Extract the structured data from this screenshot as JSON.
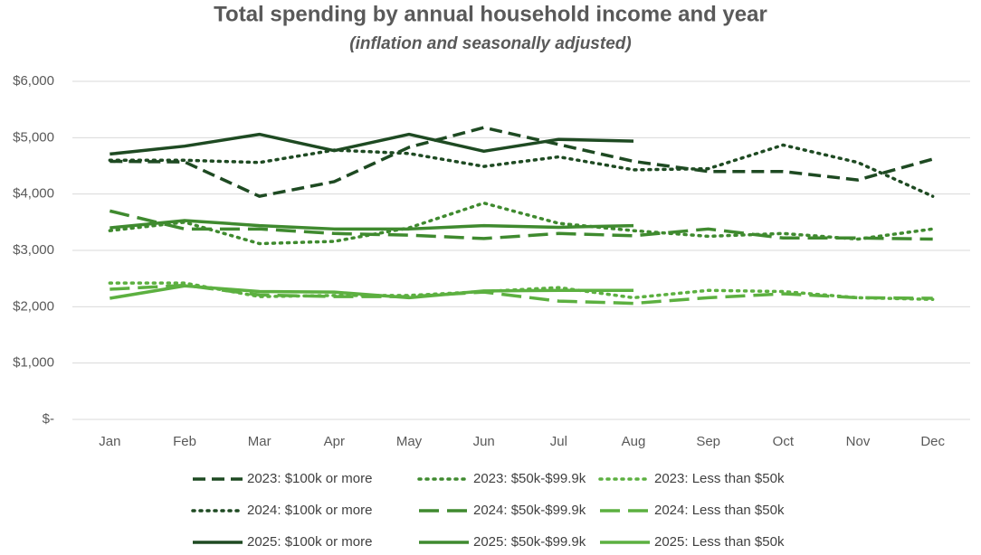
{
  "chart_data": {
    "type": "line",
    "title": "Total spending by annual household income and year",
    "subtitle": "(inflation and seasonally adjusted)",
    "categories": [
      "Jan",
      "Feb",
      "Mar",
      "Apr",
      "May",
      "Jun",
      "Jul",
      "Aug",
      "Sep",
      "Oct",
      "Nov",
      "Dec"
    ],
    "ylim": [
      0,
      6000
    ],
    "yticks": [
      {
        "value": 0,
        "label": "$-"
      },
      {
        "value": 1000,
        "label": "$1,000"
      },
      {
        "value": 2000,
        "label": "$2,000"
      },
      {
        "value": 3000,
        "label": "$3,000"
      },
      {
        "value": 4000,
        "label": "$4,000"
      },
      {
        "value": 5000,
        "label": "$5,000"
      },
      {
        "value": 6000,
        "label": "$6,000"
      }
    ],
    "grid": true,
    "legend": "bottom",
    "series": [
      {
        "name": "2023: $100k or more",
        "color": "#1e4a22",
        "style": "dashed",
        "values": [
          4580,
          4570,
          3960,
          4220,
          4830,
          5180,
          4880,
          4580,
          4400,
          4400,
          4250,
          4620
        ]
      },
      {
        "name": "2023: $50k-$99.9k",
        "color": "#3f8a2f",
        "style": "dotted",
        "values": [
          3350,
          3500,
          3120,
          3160,
          3400,
          3840,
          3480,
          3350,
          3250,
          3300,
          3200,
          3380
        ]
      },
      {
        "name": "2023: Less than $50k",
        "color": "#5cb040",
        "style": "dotted",
        "values": [
          2420,
          2420,
          2180,
          2200,
          2200,
          2270,
          2340,
          2160,
          2290,
          2270,
          2160,
          2130
        ]
      },
      {
        "name": "2024: $100k or more",
        "color": "#1e4a22",
        "style": "dotted",
        "values": [
          4600,
          4600,
          4560,
          4780,
          4720,
          4490,
          4660,
          4430,
          4450,
          4870,
          4560,
          3960
        ]
      },
      {
        "name": "2024: $50k-$99.9k",
        "color": "#3f8a2f",
        "style": "longdash",
        "values": [
          3700,
          3380,
          3380,
          3300,
          3270,
          3210,
          3300,
          3260,
          3380,
          3220,
          3220,
          3200
        ]
      },
      {
        "name": "2024: Less than $50k",
        "color": "#5cb040",
        "style": "longdash",
        "values": [
          2310,
          2380,
          2210,
          2180,
          2180,
          2260,
          2100,
          2060,
          2160,
          2230,
          2160,
          2150
        ]
      },
      {
        "name": "2025: $100k or more",
        "color": "#1e4a22",
        "style": "solid",
        "values": [
          4710,
          4850,
          5060,
          4770,
          5060,
          4760,
          4970,
          4940,
          null,
          null,
          null,
          null
        ]
      },
      {
        "name": "2025: $50k-$99.9k",
        "color": "#3f8a2f",
        "style": "solid",
        "values": [
          3400,
          3530,
          3440,
          3380,
          3380,
          3440,
          3410,
          3440,
          null,
          null,
          null,
          null
        ]
      },
      {
        "name": "2025: Less than $50k",
        "color": "#5cb040",
        "style": "solid",
        "values": [
          2150,
          2370,
          2270,
          2260,
          2160,
          2280,
          2290,
          2290,
          null,
          null,
          null,
          null
        ]
      }
    ]
  }
}
